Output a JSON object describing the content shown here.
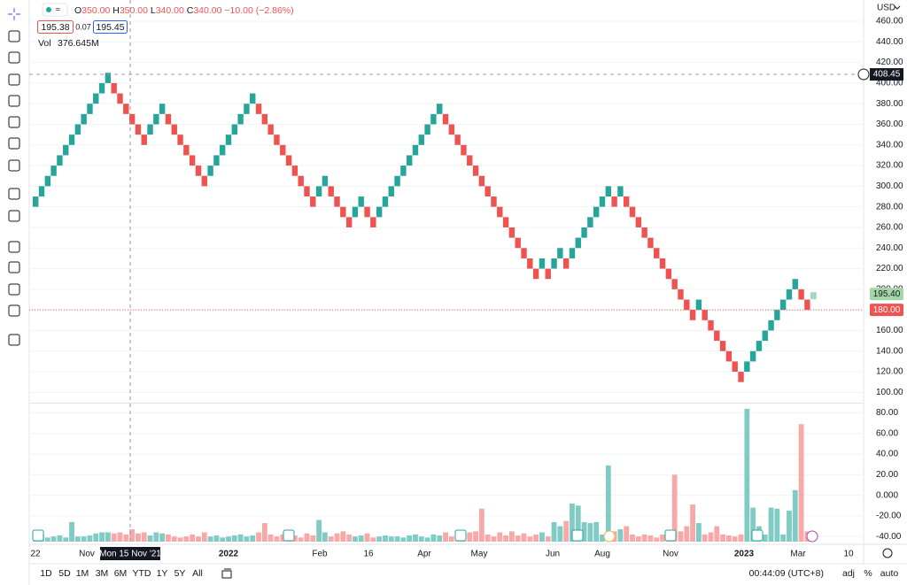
{
  "header": {
    "ohlc": [
      {
        "label": "O",
        "value": "350.00"
      },
      {
        "label": "H",
        "value": "350.00"
      },
      {
        "label": "L",
        "value": "340.00"
      },
      {
        "label": "C",
        "value": "340.00"
      }
    ],
    "change": "−10.00 (−2.86%)",
    "sell": "195.38",
    "spread": "0.07",
    "buy": "195.45",
    "vol_label": "Vol",
    "vol_value": "376.645M",
    "currency": "USD"
  },
  "chart_data": {
    "type": "renko",
    "open": [
      280,
      290,
      300,
      310,
      320,
      330,
      340,
      350,
      360,
      370,
      380,
      390,
      400,
      400,
      390,
      380,
      370,
      360,
      350,
      350,
      360,
      370,
      370,
      360,
      350,
      340,
      330,
      320,
      310,
      310,
      320,
      330,
      340,
      350,
      360,
      370,
      380,
      380,
      370,
      360,
      350,
      340,
      330,
      320,
      310,
      300,
      290,
      290,
      300,
      300,
      290,
      280,
      270,
      270,
      280,
      280,
      270,
      270,
      280,
      290,
      300,
      310,
      320,
      330,
      340,
      350,
      360,
      370,
      370,
      360,
      350,
      340,
      330,
      320,
      310,
      300,
      290,
      280,
      270,
      260,
      250,
      240,
      230,
      220,
      220,
      220,
      220,
      230,
      230,
      230,
      240,
      250,
      260,
      270,
      280,
      290,
      290,
      290,
      290,
      280,
      270,
      260,
      250,
      240,
      230,
      220,
      210,
      200,
      190,
      180,
      180,
      180,
      170,
      160,
      150,
      140,
      130,
      120,
      120,
      130,
      140,
      150,
      160,
      170,
      180,
      190,
      200,
      200,
      190
    ],
    "close": [
      290,
      300,
      310,
      320,
      330,
      340,
      350,
      360,
      370,
      380,
      390,
      400,
      410,
      390,
      380,
      370,
      360,
      350,
      340,
      360,
      370,
      380,
      360,
      350,
      340,
      330,
      320,
      310,
      300,
      320,
      330,
      340,
      350,
      360,
      370,
      380,
      390,
      370,
      360,
      350,
      340,
      330,
      320,
      310,
      300,
      290,
      280,
      300,
      310,
      290,
      280,
      270,
      260,
      280,
      290,
      270,
      260,
      280,
      290,
      300,
      310,
      320,
      330,
      340,
      350,
      360,
      370,
      380,
      360,
      350,
      340,
      330,
      320,
      310,
      300,
      290,
      280,
      270,
      260,
      250,
      240,
      230,
      220,
      210,
      230,
      210,
      230,
      240,
      220,
      240,
      250,
      260,
      270,
      280,
      290,
      300,
      280,
      300,
      280,
      270,
      260,
      250,
      240,
      230,
      220,
      210,
      200,
      190,
      180,
      170,
      190,
      170,
      160,
      150,
      140,
      130,
      120,
      110,
      130,
      140,
      150,
      160,
      170,
      180,
      190,
      200,
      210,
      190,
      180
    ],
    "up_color": "#26a69a",
    "down_color": "#ef5350",
    "ylim": [
      90,
      480.6
    ],
    "yticks": [
      {
        "value": 460,
        "label": "460.00"
      },
      {
        "value": 440,
        "label": "440.00"
      },
      {
        "value": 420,
        "label": "420.00"
      },
      {
        "value": 400,
        "label": "400.00"
      },
      {
        "value": 380,
        "label": "380.00"
      },
      {
        "value": 360,
        "label": "360.00"
      },
      {
        "value": 340,
        "label": "340.00"
      },
      {
        "value": 320,
        "label": "320.00"
      },
      {
        "value": 300,
        "label": "300.00"
      },
      {
        "value": 280,
        "label": "280.00"
      },
      {
        "value": 260,
        "label": "260.00"
      },
      {
        "value": 240,
        "label": "240.00"
      },
      {
        "value": 220,
        "label": "220.00"
      },
      {
        "value": 200,
        "label": "200.00"
      },
      {
        "value": 180,
        "label": "180.00"
      },
      {
        "value": 160,
        "label": "160.00"
      },
      {
        "value": 140,
        "label": "140.00"
      },
      {
        "value": 120,
        "label": "120.00"
      },
      {
        "value": 100,
        "label": "100.00"
      }
    ],
    "grid": true,
    "crosshair": {
      "price": 408.45,
      "date": "Mon 15 Nov '21"
    },
    "last_price": {
      "value": 195.4,
      "label": "195.40"
    },
    "close_line": {
      "value": 180,
      "label": "180.00"
    },
    "volume": {
      "values": [
        -40,
        -38,
        -41,
        -40,
        -39,
        -41,
        -26,
        -40,
        -40,
        -39,
        -37,
        -36,
        -36,
        -37,
        -36,
        -38,
        -33,
        -37,
        -36,
        -39,
        -36,
        -37,
        -38,
        -40,
        -41,
        -40,
        -38,
        -40,
        -36,
        -40,
        -39,
        -41,
        -40,
        -39,
        -38,
        -40,
        -39,
        -36,
        -27,
        -38,
        -40,
        -38,
        -36,
        -39,
        -41,
        -37,
        -39,
        -24,
        -36,
        -40,
        -37,
        -35,
        -38,
        -40,
        -39,
        -37,
        -41,
        -40,
        -39,
        -40,
        -40,
        -41,
        -39,
        -38,
        -40,
        -41,
        -38,
        -39,
        -36,
        -40,
        -39,
        -37,
        -36,
        -35,
        -13,
        -38,
        -40,
        -36,
        -39,
        -35,
        -39,
        -37,
        -40,
        -38,
        -36,
        -40,
        -26,
        -30,
        -25,
        -8,
        -10,
        -26,
        -27,
        -26,
        -38,
        29,
        -35,
        -33,
        -30,
        -38,
        -40,
        -38,
        -39,
        -41,
        -38,
        -40,
        20,
        -35,
        -30,
        -9,
        -27,
        -38,
        -36,
        -30,
        -38,
        -39,
        -40,
        -38,
        84,
        -12,
        -30,
        -38,
        -12,
        -13,
        -38,
        -15,
        5,
        69,
        -35
      ],
      "up_color": "#80cbc4",
      "down_color": "#f7a9a7",
      "ylim": [
        -45,
        89
      ],
      "yticks": [
        {
          "value": 80,
          "label": "80.00"
        },
        {
          "value": 60,
          "label": "60.00"
        },
        {
          "value": 40,
          "label": "40.00"
        },
        {
          "value": 20,
          "label": "20.00"
        },
        {
          "value": 0,
          "label": "0.000"
        },
        {
          "value": -20,
          "label": "-20.00"
        },
        {
          "value": -40,
          "label": "-40.00"
        }
      ]
    },
    "x_labels": [
      "22",
      "Nov",
      "2022",
      "Feb",
      "16",
      "Apr",
      "May",
      "Jun",
      "Aug",
      "Nov",
      "2023",
      "Mar",
      "10"
    ]
  },
  "footer": {
    "ranges": [
      "1D",
      "5D",
      "1M",
      "3M",
      "6M",
      "YTD",
      "1Y",
      "5Y",
      "All"
    ],
    "time": "00:44:09 (UTC+8)",
    "adj": "adj",
    "percent": "%",
    "auto": "auto"
  }
}
